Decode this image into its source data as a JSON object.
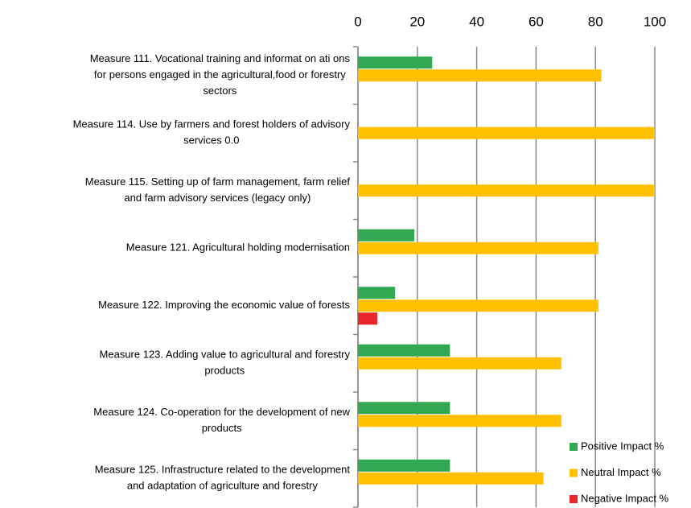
{
  "chart_data": {
    "type": "hbar",
    "categories": [
      "Measure 111. Vocational training and informat on ati ons\nfor persons engaged in the agricultural,food or forestry\nsectors",
      "Measure 114. Use by farmers and forest holders of advisory\nservices 0.0",
      "Measure 115. Setting up of farm management, farm relief\nand farm advisory services (legacy only)",
      "Measure 121. Agricultural holding modernisation",
      "Measure 122. Improving the economic value of forests",
      "Measure 123. Adding value to agricultural and forestry\nproducts",
      "Measure 124. Co-operation for the development of new\nproducts",
      "Measure 125. Infrastructure related to the development\nand adaptation of agriculture and forestry"
    ],
    "series": [
      {
        "name": "Positive Impact %",
        "color": "#33a852",
        "values": [
          25,
          0,
          0,
          19,
          12.5,
          31,
          31,
          31
        ]
      },
      {
        "name": "Neutral Impact %",
        "color": "#ffc000",
        "values": [
          82,
          100,
          100,
          81,
          81,
          68.5,
          68.5,
          62.5
        ]
      },
      {
        "name": "Negative Impact %",
        "color": "#e8262b",
        "values": [
          0,
          0,
          0,
          0,
          6.5,
          0,
          0,
          0
        ]
      }
    ],
    "xlim": [
      0,
      100
    ],
    "xticks": [
      0,
      20,
      40,
      60,
      80,
      100
    ],
    "grid": true,
    "legend": "lower right"
  }
}
